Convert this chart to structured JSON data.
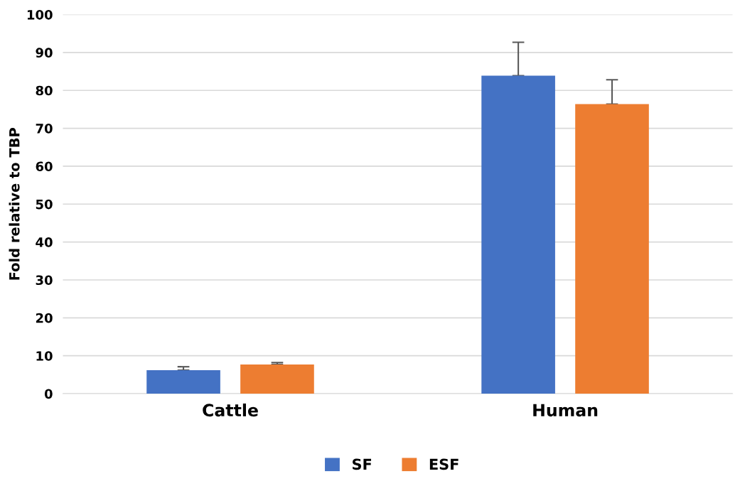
{
  "chart_data": {
    "type": "bar",
    "ylabel": "Fold relative to TBP",
    "categories": [
      "Cattle",
      "Human"
    ],
    "series": [
      {
        "name": "SF",
        "color": "#4472c4",
        "values": [
          6.2,
          83.9
        ],
        "errors": [
          [
            6.2,
            7.1
          ],
          [
            83.9,
            92.7
          ]
        ]
      },
      {
        "name": "ESF",
        "color": "#ed7d31",
        "values": [
          7.7,
          76.4
        ],
        "errors": [
          [
            7.7,
            8.2
          ],
          [
            76.4,
            82.8
          ]
        ]
      }
    ],
    "ylim": [
      0,
      100
    ],
    "yticks": [
      0,
      10,
      20,
      30,
      40,
      50,
      60,
      70,
      80,
      90,
      100
    ],
    "grid": "y",
    "legend": "bottom"
  }
}
